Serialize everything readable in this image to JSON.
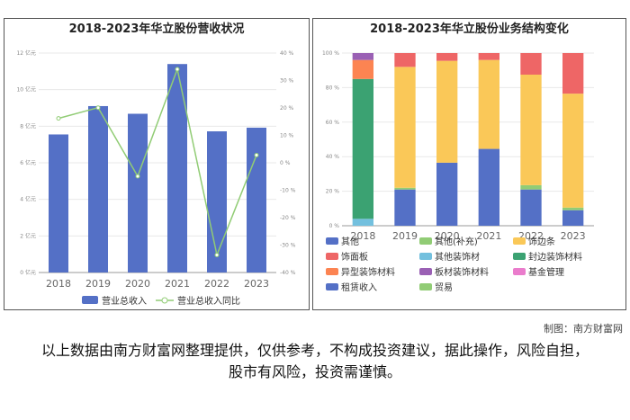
{
  "charts": {
    "left": {
      "title": "2018-2023年华立股份营收状况"
    },
    "right": {
      "title": "2018-2023年华立股份业务结构变化"
    }
  },
  "credit": "制图：南方财富网",
  "disclaimer": "以上数据由南方财富网整理提供，仅供参考，不构成投资建议，据此操作，风险自担，股市有风险，投资需谨慎。",
  "chart_data": [
    {
      "type": "bar",
      "title": "2018-2023年华立股份营收状况",
      "categories": [
        "2018",
        "2019",
        "2020",
        "2021",
        "2022",
        "2023"
      ],
      "y_axis_left": {
        "ticks": [
          "0 亿元",
          "2 亿元",
          "4 亿元",
          "6 亿元",
          "8 亿元",
          "10 亿元",
          "12 亿元"
        ],
        "ylim": [
          0,
          12
        ],
        "unit": "亿元"
      },
      "y_axis_right": {
        "ticks": [
          "-40 %",
          "-30 %",
          "-20 %",
          "-10 %",
          "0 %",
          "10 %",
          "20 %",
          "30 %",
          "40 %"
        ],
        "ylim": [
          -40,
          40
        ],
        "unit": "%"
      },
      "grid": true,
      "legend_position": "bottom",
      "series": [
        {
          "name": "营业总收入",
          "type": "bar",
          "axis": "left",
          "color": "#5470c6",
          "values": [
            7.55,
            9.1,
            8.68,
            11.4,
            7.72,
            7.92
          ]
        },
        {
          "name": "营业总收入同比",
          "type": "line",
          "axis": "right",
          "color": "#91cc75",
          "values": [
            16.2,
            20.1,
            -4.9,
            34.1,
            -33.6,
            2.8
          ]
        }
      ]
    },
    {
      "type": "bar",
      "stacked": true,
      "title": "2018-2023年华立股份业务结构变化",
      "categories": [
        "2018",
        "2019",
        "2020",
        "2021",
        "2022",
        "2023"
      ],
      "y_axis": {
        "ticks": [
          "0 %",
          "20 %",
          "40 %",
          "60 %",
          "80 %",
          "100 %"
        ],
        "ylim": [
          0,
          100
        ],
        "unit": "%"
      },
      "grid": true,
      "legend_position": "bottom",
      "series": [
        {
          "name": "其他",
          "color": "#5470c6",
          "values": [
            0,
            21,
            36.5,
            44.5,
            21,
            9
          ]
        },
        {
          "name": "其他(补充)",
          "color": "#91cc75",
          "values": [
            0,
            1,
            0,
            0,
            2.5,
            1.5
          ]
        },
        {
          "name": "饰边条",
          "color": "#fac858",
          "values": [
            0,
            70,
            59,
            51.5,
            64,
            66
          ]
        },
        {
          "name": "饰面板",
          "color": "#ee6666",
          "values": [
            0,
            8,
            4.5,
            4,
            12.5,
            23.5
          ]
        },
        {
          "name": "其他装饰材",
          "color": "#73c0de",
          "values": [
            4,
            0,
            0,
            0,
            0,
            0
          ]
        },
        {
          "name": "封边装饰材料",
          "color": "#3ba272",
          "values": [
            81,
            0,
            0,
            0,
            0,
            0
          ]
        },
        {
          "name": "异型装饰材料",
          "color": "#fc8452",
          "values": [
            11,
            0,
            0,
            0,
            0,
            0
          ]
        },
        {
          "name": "板材装饰材料",
          "color": "#9a60b4",
          "values": [
            4,
            0,
            0,
            0,
            0,
            0
          ]
        },
        {
          "name": "基金管理",
          "color": "#ea7ccc",
          "values": [
            0,
            0,
            0,
            0,
            0,
            0
          ]
        },
        {
          "name": "租赁收入",
          "color": "#5470c6",
          "values": [
            0,
            0,
            0,
            0,
            0,
            0
          ]
        },
        {
          "name": "贸易",
          "color": "#91cc75",
          "values": [
            0,
            0,
            0,
            0,
            0,
            0
          ]
        }
      ]
    }
  ]
}
